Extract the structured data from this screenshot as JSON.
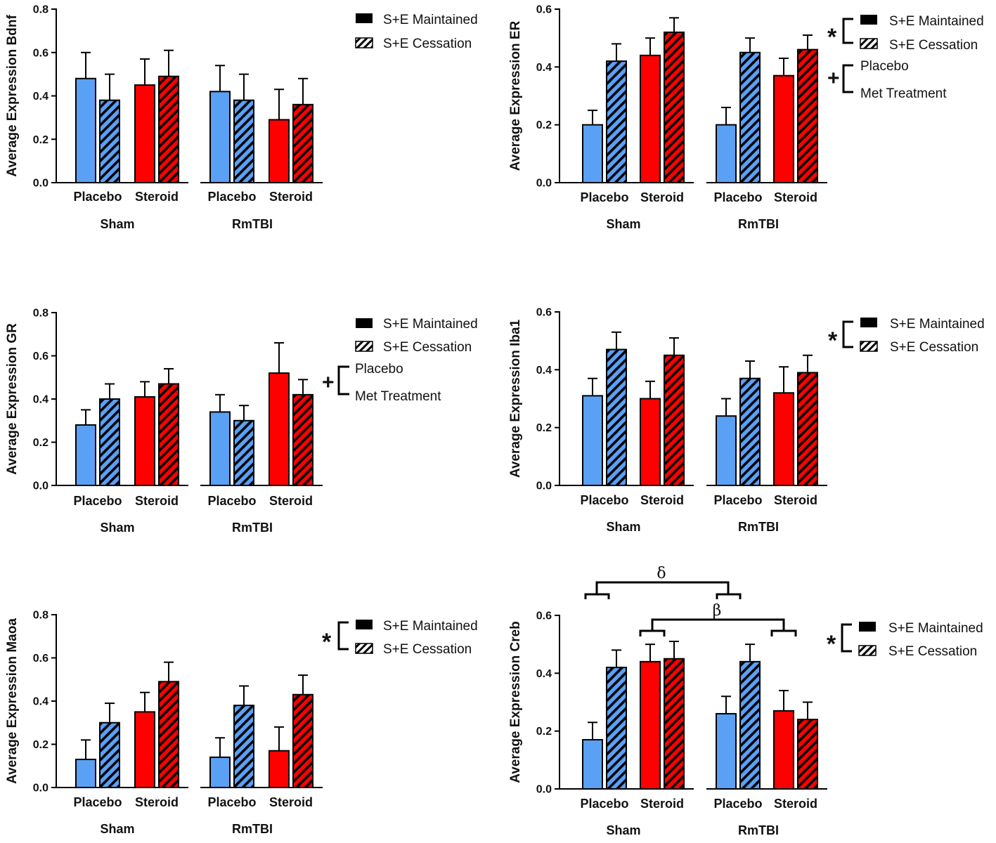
{
  "colors": {
    "placebo": "#5aa0f5",
    "steroid": "#ff0000",
    "ink": "#000000"
  },
  "legend_labels": {
    "maintained": "S+E Maintained",
    "cessation": "S+E Cessation",
    "placebo": "Placebo",
    "met": "Met Treatment"
  },
  "chart_data": [
    {
      "type": "bar",
      "ylabel": "Average Expression Bdnf",
      "ylim": [
        0,
        0.8
      ],
      "yticks": [
        "0.0",
        "0.2",
        "0.4",
        "0.6",
        "0.8"
      ],
      "group_labels": [
        "Sham",
        "RmTBI"
      ],
      "categories": [
        "Placebo",
        "Steroid",
        "Placebo",
        "Steroid"
      ],
      "series": [
        {
          "name": "S+E Maintained",
          "values": [
            0.48,
            0.45,
            0.42,
            0.29
          ],
          "errors": [
            0.12,
            0.12,
            0.12,
            0.14
          ]
        },
        {
          "name": "S+E Cessation",
          "values": [
            0.38,
            0.49,
            0.38,
            0.36
          ],
          "errors": [
            0.12,
            0.12,
            0.12,
            0.12
          ]
        }
      ],
      "significance": []
    },
    {
      "type": "bar",
      "ylabel": "Average Expression ER",
      "ylim": [
        0,
        0.6
      ],
      "yticks": [
        "0.0",
        "0.2",
        "0.4",
        "0.6"
      ],
      "group_labels": [
        "Sham",
        "RmTBI"
      ],
      "categories": [
        "Placebo",
        "Steroid",
        "Placebo",
        "Steroid"
      ],
      "series": [
        {
          "name": "S+E Maintained",
          "values": [
            0.2,
            0.44,
            0.2,
            0.37
          ],
          "errors": [
            0.05,
            0.06,
            0.06,
            0.06
          ]
        },
        {
          "name": "S+E Cessation",
          "values": [
            0.42,
            0.52,
            0.45,
            0.46
          ],
          "errors": [
            0.06,
            0.05,
            0.05,
            0.05
          ]
        }
      ],
      "significance": [
        "*",
        "+"
      ]
    },
    {
      "type": "bar",
      "ylabel": "Average Expression GR",
      "ylim": [
        0,
        0.8
      ],
      "yticks": [
        "0.0",
        "0.2",
        "0.4",
        "0.6",
        "0.8"
      ],
      "group_labels": [
        "Sham",
        "RmTBI"
      ],
      "categories": [
        "Placebo",
        "Steroid",
        "Placebo",
        "Steroid"
      ],
      "series": [
        {
          "name": "S+E Maintained",
          "values": [
            0.28,
            0.41,
            0.34,
            0.52
          ],
          "errors": [
            0.07,
            0.07,
            0.08,
            0.14
          ]
        },
        {
          "name": "S+E Cessation",
          "values": [
            0.4,
            0.47,
            0.3,
            0.42
          ],
          "errors": [
            0.07,
            0.07,
            0.07,
            0.07
          ]
        }
      ],
      "significance": [
        "+"
      ]
    },
    {
      "type": "bar",
      "ylabel": "Average Expression Iba1",
      "ylim": [
        0,
        0.6
      ],
      "yticks": [
        "0.0",
        "0.2",
        "0.4",
        "0.6"
      ],
      "group_labels": [
        "Sham",
        "RmTBI"
      ],
      "categories": [
        "Placebo",
        "Steroid",
        "Placebo",
        "Steroid"
      ],
      "series": [
        {
          "name": "S+E Maintained",
          "values": [
            0.31,
            0.3,
            0.24,
            0.32
          ],
          "errors": [
            0.06,
            0.06,
            0.06,
            0.09
          ]
        },
        {
          "name": "S+E Cessation",
          "values": [
            0.47,
            0.45,
            0.37,
            0.39
          ],
          "errors": [
            0.06,
            0.06,
            0.06,
            0.06
          ]
        }
      ],
      "significance": [
        "*"
      ]
    },
    {
      "type": "bar",
      "ylabel": "Average Expression Maoa",
      "ylim": [
        0,
        0.8
      ],
      "yticks": [
        "0.0",
        "0.2",
        "0.4",
        "0.6",
        "0.8"
      ],
      "group_labels": [
        "Sham",
        "RmTBI"
      ],
      "categories": [
        "Placebo",
        "Steroid",
        "Placebo",
        "Steroid"
      ],
      "series": [
        {
          "name": "S+E Maintained",
          "values": [
            0.13,
            0.35,
            0.14,
            0.17
          ],
          "errors": [
            0.09,
            0.09,
            0.09,
            0.11
          ]
        },
        {
          "name": "S+E Cessation",
          "values": [
            0.3,
            0.49,
            0.38,
            0.43
          ],
          "errors": [
            0.09,
            0.09,
            0.09,
            0.09
          ]
        }
      ],
      "significance": [
        "*"
      ]
    },
    {
      "type": "bar",
      "ylabel": "Average Expression Creb",
      "ylim": [
        0,
        0.6
      ],
      "yticks": [
        "0.0",
        "0.2",
        "0.4",
        "0.6"
      ],
      "group_labels": [
        "Sham",
        "RmTBI"
      ],
      "categories": [
        "Placebo",
        "Steroid",
        "Placebo",
        "Steroid"
      ],
      "series": [
        {
          "name": "S+E Maintained",
          "values": [
            0.17,
            0.44,
            0.26,
            0.27
          ],
          "errors": [
            0.06,
            0.06,
            0.06,
            0.07
          ]
        },
        {
          "name": "S+E Cessation",
          "values": [
            0.42,
            0.45,
            0.44,
            0.24
          ],
          "errors": [
            0.06,
            0.06,
            0.06,
            0.06
          ]
        }
      ],
      "significance": [
        "*"
      ],
      "annotations": [
        "δ",
        "β"
      ]
    }
  ]
}
